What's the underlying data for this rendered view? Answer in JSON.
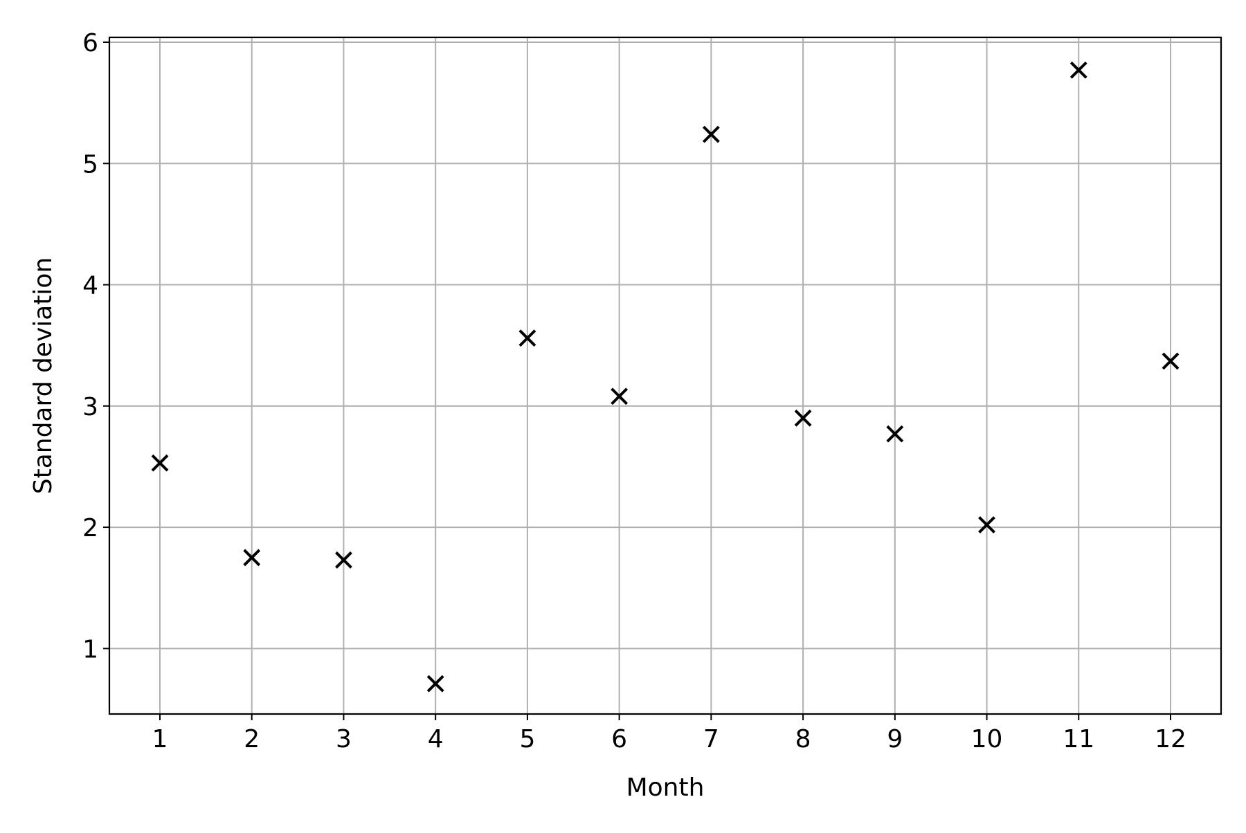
{
  "chart_data": {
    "type": "scatter",
    "title": "",
    "xlabel": "Month",
    "ylabel": "Standard deviation",
    "x": [
      1,
      2,
      3,
      4,
      5,
      6,
      7,
      8,
      9,
      10,
      11,
      12
    ],
    "y": [
      2.53,
      1.75,
      1.73,
      0.71,
      3.56,
      3.08,
      5.24,
      2.9,
      2.77,
      2.02,
      5.77,
      3.37
    ],
    "xlim": [
      0.45,
      12.55
    ],
    "ylim": [
      0.46,
      6.04
    ],
    "xticks": [
      1,
      2,
      3,
      4,
      5,
      6,
      7,
      8,
      9,
      10,
      11,
      12
    ],
    "xtick_labels": [
      "1",
      "2",
      "3",
      "4",
      "5",
      "6",
      "7",
      "8",
      "9",
      "10",
      "11",
      "12"
    ],
    "yticks": [
      1,
      2,
      3,
      4,
      5,
      6
    ],
    "ytick_labels": [
      "1",
      "2",
      "3",
      "4",
      "5",
      "6"
    ],
    "grid": true,
    "marker": "x",
    "marker_color": "#000000",
    "grid_color": "#b0b0b0"
  }
}
